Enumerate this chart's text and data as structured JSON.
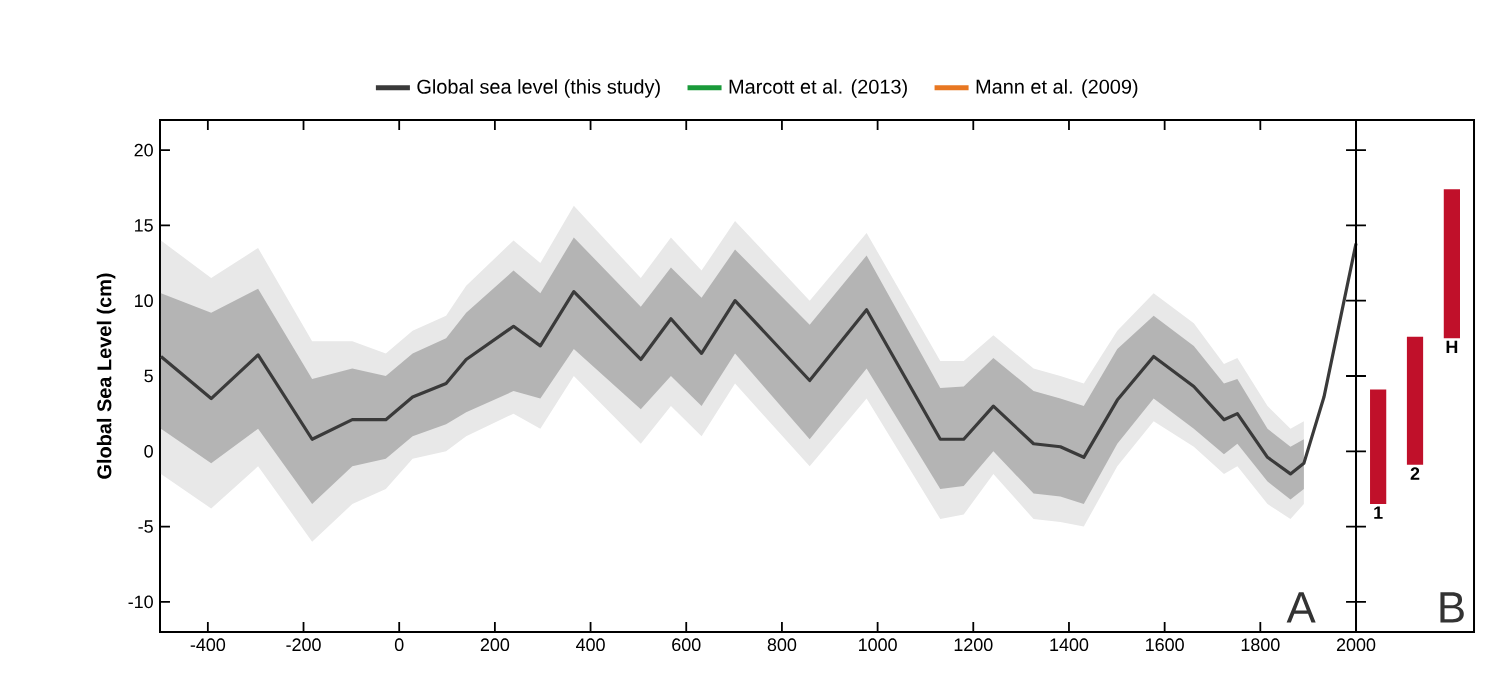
{
  "chart_data": [
    {
      "type": "line",
      "ylabel": "Global Sea Level (cm)",
      "xlim": [
        -500,
        2000
      ],
      "ylim": [
        -12,
        22
      ],
      "xticks": [
        -400,
        -200,
        0,
        200,
        400,
        600,
        800,
        1000,
        1200,
        1400,
        1600,
        1800,
        2000
      ],
      "yticks": [
        -10,
        -5,
        0,
        5,
        10,
        15,
        20
      ],
      "legend": "top",
      "annotations": [
        "A"
      ],
      "series": [
        {
          "color": "#e8e8e8",
          "x": [
            -498,
            -393,
            -295,
            -182,
            -98,
            -28,
            28,
            98,
            140,
            239,
            295,
            365,
            505,
            568,
            632,
            702,
            858,
            977,
            1131,
            1180,
            1242,
            1326,
            1382,
            1431,
            1501,
            1577,
            1661,
            1724,
            1752,
            1815,
            1863,
            1891
          ],
          "values": [
            null,
            null,
            null,
            null,
            null,
            null,
            null,
            null,
            null,
            null,
            null,
            null,
            null,
            null,
            null,
            null,
            null,
            null,
            null,
            null,
            null,
            null,
            null,
            null,
            null,
            null,
            null,
            null,
            null,
            null,
            null,
            null
          ],
          "lower": [
            -1.5,
            -3.8,
            -1,
            -6,
            -3.5,
            -2.5,
            -0.5,
            0,
            1,
            2.5,
            1.5,
            5,
            0.5,
            3,
            1,
            4.5,
            -1,
            3.5,
            -4.5,
            -4.2,
            -1.5,
            -4.5,
            -4.7,
            -5,
            -1,
            2,
            0.3,
            -1.5,
            -1,
            -3.5,
            -4.5,
            -3.5
          ],
          "upper": [
            14,
            11.5,
            13.5,
            7.3,
            7.3,
            6.5,
            8,
            9,
            11,
            14,
            12.5,
            16.3,
            11.5,
            14.2,
            12,
            15.3,
            10,
            14.5,
            6,
            6,
            7.7,
            5.5,
            5,
            4.5,
            8,
            10.5,
            8.5,
            5.8,
            6.2,
            3,
            1.5,
            2
          ]
        },
        {
          "name": "Global sea level (this study)",
          "color": "#3a3a3a",
          "x": [
            -498,
            -393,
            -295,
            -182,
            -98,
            -28,
            28,
            98,
            140,
            239,
            295,
            365,
            505,
            568,
            632,
            702,
            858,
            977,
            1131,
            1180,
            1242,
            1326,
            1382,
            1431,
            1501,
            1577,
            1661,
            1724,
            1752,
            1815,
            1863,
            1891,
            1933,
            2000
          ],
          "values": [
            6.3,
            3.5,
            6.4,
            0.8,
            2.1,
            2.1,
            3.6,
            4.5,
            6.1,
            8.3,
            7.0,
            10.6,
            6.1,
            8.8,
            6.5,
            10.0,
            4.7,
            9.4,
            0.8,
            0.8,
            3.0,
            0.5,
            0.3,
            -0.4,
            3.4,
            6.3,
            4.3,
            2.1,
            2.5,
            -0.4,
            -1.5,
            -0.8,
            3.6,
            13.8
          ],
          "lower": [
            1.5,
            -0.8,
            1.5,
            -3.5,
            -1,
            -0.5,
            1,
            1.8,
            2.6,
            4,
            3.5,
            6.8,
            2.8,
            5,
            3,
            6.5,
            0.8,
            5.5,
            -2.5,
            -2.3,
            0,
            -2.8,
            -3,
            -3.5,
            0.5,
            3.5,
            1.5,
            -0.2,
            0.5,
            -2,
            -3.2,
            -2.5,
            null,
            null
          ],
          "upper": [
            10.5,
            9.2,
            10.8,
            4.8,
            5.5,
            5,
            6.5,
            7.5,
            9.2,
            12,
            10.5,
            14.2,
            9.6,
            12.2,
            10.2,
            13.4,
            8.4,
            13,
            4.2,
            4.3,
            6.2,
            4,
            3.5,
            3,
            6.8,
            9,
            7,
            4.5,
            4.8,
            1.5,
            0.3,
            0.8,
            null,
            null
          ]
        },
        {
          "name": "Marcott et al. (2013)",
          "color": "#1a9a3a"
        },
        {
          "name": "Mann et al. (2009)",
          "color": "#e87722"
        }
      ]
    },
    {
      "type": "bar",
      "categories": [
        "1",
        "2",
        "H"
      ],
      "base": [
        -3.5,
        -0.9,
        7.5
      ],
      "values": [
        7.6,
        8.5,
        9.9
      ],
      "color": "#c0102a",
      "ylim": [
        -12,
        22
      ],
      "yticks": [
        -10,
        -5,
        0,
        5,
        10,
        15,
        20
      ],
      "tick_labels": false,
      "annotations": [
        "B"
      ]
    }
  ]
}
